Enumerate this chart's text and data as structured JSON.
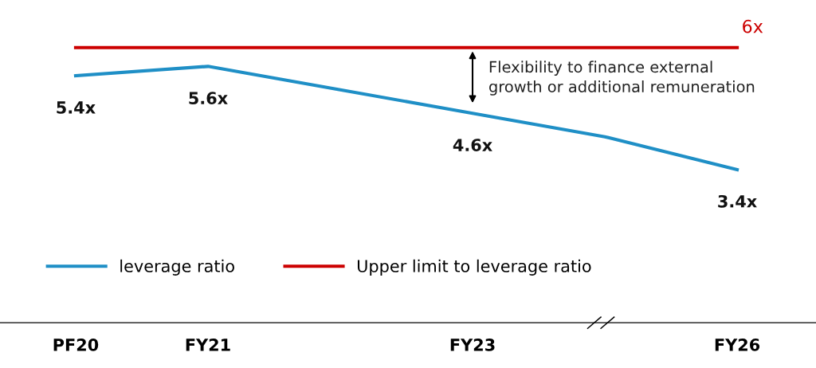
{
  "chart_data": {
    "type": "line",
    "categories": [
      "PF20",
      "FY21",
      null,
      "FY23",
      null,
      "FY26"
    ],
    "series": [
      {
        "name": "leverage ratio",
        "color": "#1f8fc6",
        "values": [
          5.4,
          5.6,
          5.1,
          4.6,
          4.1,
          3.4
        ],
        "value_labels": [
          "5.4x",
          "5.6x",
          null,
          "4.6x",
          null,
          "3.4x"
        ]
      },
      {
        "name": "Upper limit to leverage ratio",
        "color": "#cc0000",
        "values": [
          6,
          6,
          6,
          6,
          6,
          6
        ],
        "value_labels": [
          null,
          null,
          null,
          null,
          null,
          "6x"
        ]
      }
    ],
    "annotations": [
      "Flexibility to finance external\ngrowth or additional remuneration"
    ],
    "tick_labels": "x",
    "legend": "bottom left",
    "grid": false,
    "marker": "none",
    "line_style": "solid"
  }
}
